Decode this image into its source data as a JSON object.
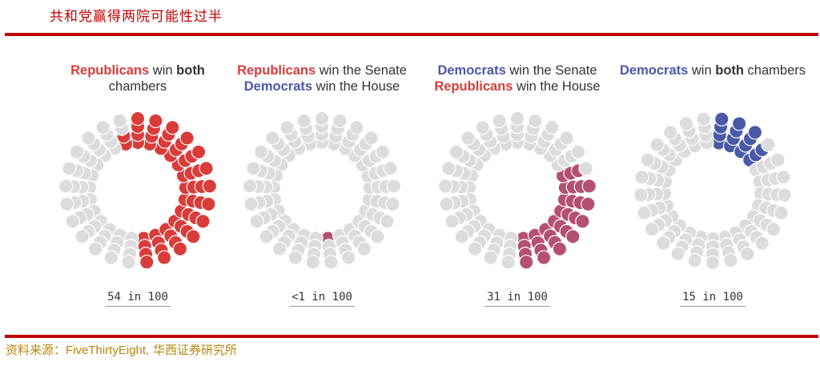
{
  "page": {
    "title": "共和党赢得两院可能性过半",
    "source_prefix": "资料来源：",
    "source_brand": "FiveThirtyEight,",
    "source_suffix": " 华西证券研究所"
  },
  "colors": {
    "republican": "#d93c3a",
    "democrat": "#4a58a8",
    "mixed": "#b5506e",
    "empty": "#dcdcdc",
    "rule": "#c00000"
  },
  "chart_data": [
    {
      "type": "dot-ring",
      "heading_line1": [
        "Republicans",
        " win ",
        "both"
      ],
      "heading_line2": [
        "chambers"
      ],
      "probability_label": "54 in 100",
      "value": 54,
      "total": 100,
      "start_deg": 180,
      "direction": "ccw",
      "fill": "republican"
    },
    {
      "type": "dot-ring",
      "heading_line1": [
        "Republicans",
        " win the Senate"
      ],
      "heading_line2": [
        "Democrats",
        " win the House"
      ],
      "probability_label": "<1 in 100",
      "value": 1,
      "total": 100,
      "start_deg": 180,
      "direction": "ccw",
      "fill": "mixed"
    },
    {
      "type": "dot-ring",
      "heading_line1": [
        "Democrats",
        " win the Senate"
      ],
      "heading_line2": [
        "Republicans",
        " win the House"
      ],
      "probability_label": "31 in 100",
      "value": 31,
      "total": 100,
      "start_deg": 180,
      "direction": "ccw",
      "fill": "mixed"
    },
    {
      "type": "dot-ring",
      "heading_line1": [
        "Democrats",
        " win ",
        "both",
        " chambers"
      ],
      "heading_line2": [],
      "probability_label": "15 in 100",
      "value": 15,
      "total": 100,
      "start_deg": 0,
      "direction": "cw",
      "fill": "democrat"
    }
  ]
}
